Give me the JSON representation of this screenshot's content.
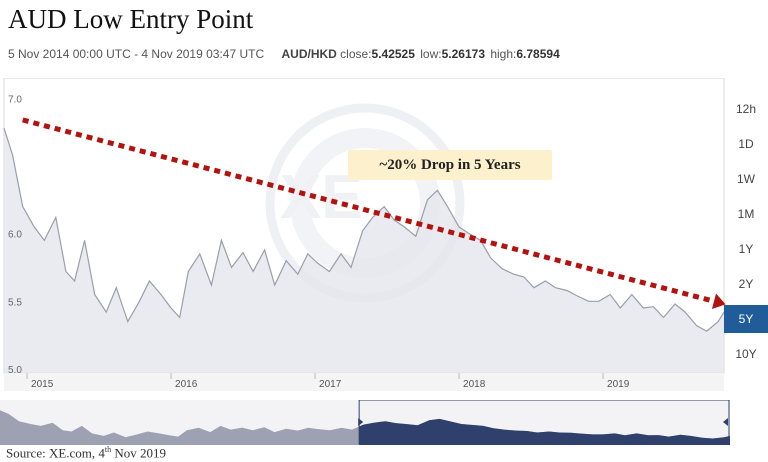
{
  "title": "AUD Low Entry Point",
  "meta": {
    "date_range": "5 Nov 2014 00:00 UTC - 4 Nov 2019 03:47 UTC",
    "pair": "AUD/HKD",
    "close_label": "close:",
    "close_value": "5.42525",
    "low_label": "low:",
    "low_value": "5.26173",
    "high_label": "high:",
    "high_value": "6.78594"
  },
  "timeframes": [
    {
      "label": "12h",
      "active": false
    },
    {
      "label": "1D",
      "active": false
    },
    {
      "label": "1W",
      "active": false
    },
    {
      "label": "1M",
      "active": false
    },
    {
      "label": "1Y",
      "active": false
    },
    {
      "label": "2Y",
      "active": false
    },
    {
      "label": "5Y",
      "active": true
    },
    {
      "label": "10Y",
      "active": false
    }
  ],
  "annotation": "~20% Drop in 5 Years",
  "source": {
    "text": "Source: XE.com, 4",
    "sup": "th",
    "tail": " Nov 2019"
  },
  "colors": {
    "line": "#9a9eab",
    "area": "#e4e6ec",
    "trend": "#b3130f",
    "active_tf": "#1f5c99",
    "overview_fill": "#9da1b1",
    "overview_dark": "#30406c"
  },
  "chart_data": {
    "type": "line",
    "title": "",
    "xlabel": "",
    "ylabel": "",
    "ylim": [
      5.0,
      7.0
    ],
    "y_ticks": [
      5.0,
      5.5,
      6.0,
      7.0
    ],
    "x_ticks": [
      "2015",
      "2016",
      "2017",
      "2018",
      "2019"
    ],
    "x_tick_years": [
      2015,
      2016,
      2017,
      2018,
      2019
    ],
    "xlim": [
      2014.84,
      2019.84
    ],
    "series": [
      {
        "values_x": [
          2014.84,
          2014.9,
          2014.97,
          2015.05,
          2015.12,
          2015.2,
          2015.27,
          2015.33,
          2015.4,
          2015.47,
          2015.55,
          2015.62,
          2015.7,
          2015.78,
          2015.85,
          2015.93,
          2016.0,
          2016.06,
          2016.12,
          2016.2,
          2016.28,
          2016.35,
          2016.42,
          2016.5,
          2016.57,
          2016.65,
          2016.72,
          2016.8,
          2016.88,
          2016.95,
          2017.02,
          2017.1,
          2017.18,
          2017.25,
          2017.33,
          2017.4,
          2017.48,
          2017.55,
          2017.62,
          2017.7,
          2017.78,
          2017.85,
          2017.92,
          2018.0,
          2018.07,
          2018.15,
          2018.22,
          2018.3,
          2018.38,
          2018.45,
          2018.52,
          2018.6,
          2018.67,
          2018.75,
          2018.82,
          2018.9,
          2018.97,
          2019.05,
          2019.12,
          2019.2,
          2019.28,
          2019.35,
          2019.42,
          2019.5,
          2019.57,
          2019.65,
          2019.72,
          2019.8,
          2019.84
        ],
        "values_y": [
          6.78,
          6.58,
          6.2,
          6.05,
          5.95,
          6.12,
          5.72,
          5.65,
          5.95,
          5.55,
          5.42,
          5.6,
          5.35,
          5.5,
          5.65,
          5.55,
          5.45,
          5.38,
          5.72,
          5.85,
          5.62,
          5.95,
          5.75,
          5.86,
          5.72,
          5.88,
          5.62,
          5.8,
          5.7,
          5.85,
          5.78,
          5.72,
          5.85,
          5.75,
          6.02,
          6.12,
          6.2,
          6.1,
          6.05,
          5.98,
          6.25,
          6.32,
          6.2,
          6.05,
          6.0,
          5.95,
          5.82,
          5.74,
          5.7,
          5.68,
          5.6,
          5.65,
          5.6,
          5.58,
          5.54,
          5.5,
          5.5,
          5.55,
          5.45,
          5.55,
          5.45,
          5.46,
          5.38,
          5.48,
          5.42,
          5.32,
          5.28,
          5.35,
          5.42
        ]
      }
    ],
    "trend_line": {
      "from": [
        2014.97,
        6.84
      ],
      "to": [
        2019.84,
        5.5
      ]
    },
    "overview_range": [
      2014.84,
      2019.84
    ],
    "selected_range": [
      2017.3,
      2019.84
    ]
  }
}
